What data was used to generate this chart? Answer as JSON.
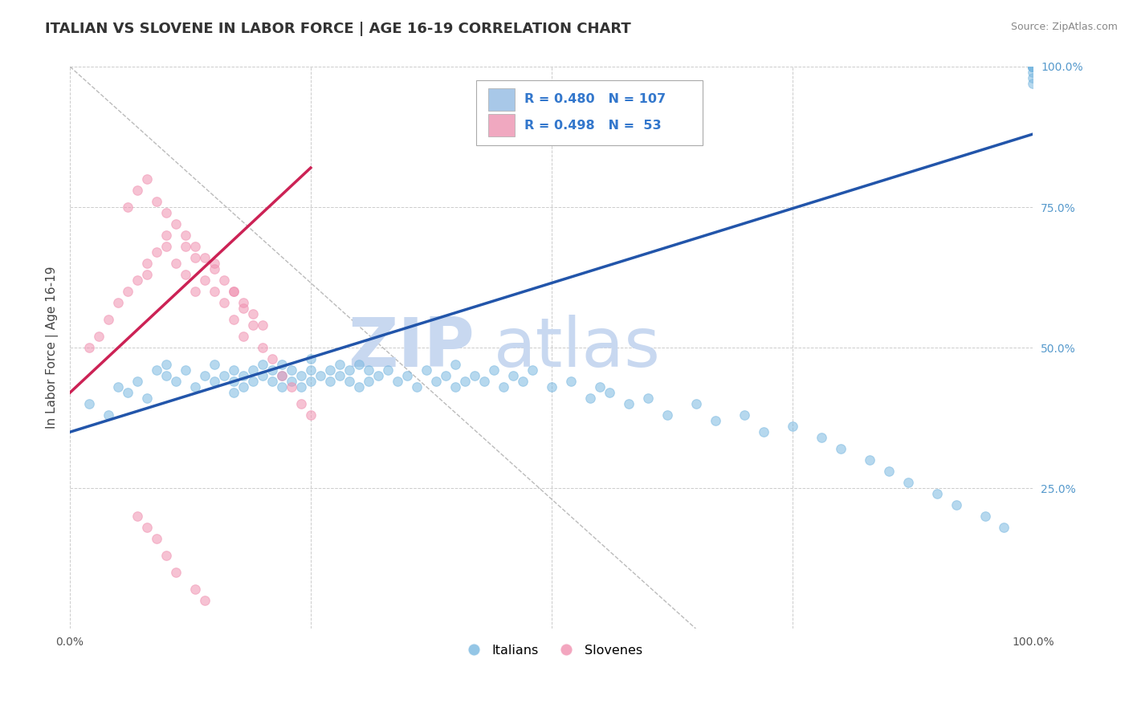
{
  "title": "ITALIAN VS SLOVENE IN LABOR FORCE | AGE 16-19 CORRELATION CHART",
  "source_text": "Source: ZipAtlas.com",
  "ylabel": "In Labor Force | Age 16-19",
  "legend_labels": [
    "Italians",
    "Slovenes"
  ],
  "legend_patch_colors": [
    "#a8c8e8",
    "#f0a8c0"
  ],
  "blue_R": 0.48,
  "blue_N": 107,
  "pink_R": 0.498,
  "pink_N": 53,
  "blue_dot_color": "#7ab8e0",
  "pink_dot_color": "#f090b0",
  "blue_line_color": "#2255aa",
  "pink_line_color": "#cc2255",
  "watermark_zip": "ZIP",
  "watermark_atlas": "atlas",
  "watermark_color": "#c8d8f0",
  "xlim": [
    0.0,
    1.0
  ],
  "ylim": [
    0.0,
    1.0
  ],
  "ytick_positions": [
    0.0,
    0.25,
    0.5,
    0.75,
    1.0
  ],
  "ytick_labels": [
    "",
    "25.0%",
    "50.0%",
    "75.0%",
    "100.0%"
  ],
  "xtick_positions": [
    0.0,
    0.25,
    0.5,
    0.75,
    1.0
  ],
  "xtick_labels": [
    "0.0%",
    "",
    "",
    "",
    "100.0%"
  ],
  "blue_scatter_x": [
    0.02,
    0.04,
    0.05,
    0.06,
    0.07,
    0.08,
    0.09,
    0.1,
    0.1,
    0.11,
    0.12,
    0.13,
    0.14,
    0.15,
    0.15,
    0.16,
    0.17,
    0.17,
    0.17,
    0.18,
    0.18,
    0.19,
    0.19,
    0.2,
    0.2,
    0.21,
    0.21,
    0.22,
    0.22,
    0.22,
    0.23,
    0.23,
    0.24,
    0.24,
    0.25,
    0.25,
    0.25,
    0.26,
    0.27,
    0.27,
    0.28,
    0.28,
    0.29,
    0.29,
    0.3,
    0.3,
    0.31,
    0.31,
    0.32,
    0.33,
    0.34,
    0.35,
    0.36,
    0.37,
    0.38,
    0.39,
    0.4,
    0.4,
    0.41,
    0.42,
    0.43,
    0.44,
    0.45,
    0.46,
    0.47,
    0.48,
    0.5,
    0.52,
    0.54,
    0.55,
    0.56,
    0.58,
    0.6,
    0.62,
    0.65,
    0.67,
    0.7,
    0.72,
    0.75,
    0.78,
    0.8,
    0.83,
    0.85,
    0.87,
    0.9,
    0.92,
    0.95,
    0.97,
    1.0,
    1.0,
    1.0,
    1.0,
    1.0,
    1.0,
    1.0,
    1.0,
    1.0,
    1.0,
    1.0,
    1.0,
    1.0,
    1.0,
    1.0,
    1.0,
    1.0,
    1.0,
    1.0
  ],
  "blue_scatter_y": [
    0.4,
    0.38,
    0.43,
    0.42,
    0.44,
    0.41,
    0.46,
    0.45,
    0.47,
    0.44,
    0.46,
    0.43,
    0.45,
    0.44,
    0.47,
    0.45,
    0.44,
    0.46,
    0.42,
    0.45,
    0.43,
    0.46,
    0.44,
    0.45,
    0.47,
    0.44,
    0.46,
    0.45,
    0.43,
    0.47,
    0.44,
    0.46,
    0.45,
    0.43,
    0.46,
    0.44,
    0.48,
    0.45,
    0.46,
    0.44,
    0.47,
    0.45,
    0.46,
    0.44,
    0.43,
    0.47,
    0.46,
    0.44,
    0.45,
    0.46,
    0.44,
    0.45,
    0.43,
    0.46,
    0.44,
    0.45,
    0.43,
    0.47,
    0.44,
    0.45,
    0.44,
    0.46,
    0.43,
    0.45,
    0.44,
    0.46,
    0.43,
    0.44,
    0.41,
    0.43,
    0.42,
    0.4,
    0.41,
    0.38,
    0.4,
    0.37,
    0.38,
    0.35,
    0.36,
    0.34,
    0.32,
    0.3,
    0.28,
    0.26,
    0.24,
    0.22,
    0.2,
    0.18,
    0.97,
    0.98,
    0.99,
    1.0,
    1.0,
    1.0,
    1.0,
    1.0,
    1.0,
    1.0,
    1.0,
    1.0,
    1.0,
    1.0,
    1.0,
    1.0,
    1.0,
    1.0,
    1.0
  ],
  "pink_scatter_x": [
    0.02,
    0.03,
    0.04,
    0.05,
    0.06,
    0.07,
    0.08,
    0.08,
    0.09,
    0.1,
    0.1,
    0.11,
    0.12,
    0.12,
    0.13,
    0.13,
    0.14,
    0.15,
    0.15,
    0.16,
    0.17,
    0.17,
    0.18,
    0.18,
    0.19,
    0.2,
    0.21,
    0.22,
    0.23,
    0.24,
    0.25,
    0.06,
    0.07,
    0.08,
    0.09,
    0.1,
    0.11,
    0.12,
    0.13,
    0.14,
    0.15,
    0.16,
    0.17,
    0.18,
    0.19,
    0.2,
    0.07,
    0.08,
    0.09,
    0.1,
    0.11,
    0.13,
    0.14
  ],
  "pink_scatter_y": [
    0.5,
    0.52,
    0.55,
    0.58,
    0.6,
    0.62,
    0.65,
    0.63,
    0.67,
    0.7,
    0.68,
    0.65,
    0.68,
    0.63,
    0.66,
    0.6,
    0.62,
    0.65,
    0.6,
    0.58,
    0.6,
    0.55,
    0.57,
    0.52,
    0.54,
    0.5,
    0.48,
    0.45,
    0.43,
    0.4,
    0.38,
    0.75,
    0.78,
    0.8,
    0.76,
    0.74,
    0.72,
    0.7,
    0.68,
    0.66,
    0.64,
    0.62,
    0.6,
    0.58,
    0.56,
    0.54,
    0.2,
    0.18,
    0.16,
    0.13,
    0.1,
    0.07,
    0.05
  ],
  "blue_line_x": [
    0.0,
    1.0
  ],
  "blue_line_y": [
    0.35,
    0.88
  ],
  "pink_line_x": [
    0.0,
    0.25
  ],
  "pink_line_y": [
    0.42,
    0.82
  ],
  "ref_line_x": [
    0.0,
    0.65
  ],
  "ref_line_y": [
    1.0,
    0.0
  ],
  "grid_color": "#cccccc",
  "dot_size": 70,
  "dot_alpha": 0.55,
  "title_fontsize": 13,
  "axis_fontsize": 11,
  "tick_fontsize": 10,
  "right_tick_color": "#5599cc"
}
